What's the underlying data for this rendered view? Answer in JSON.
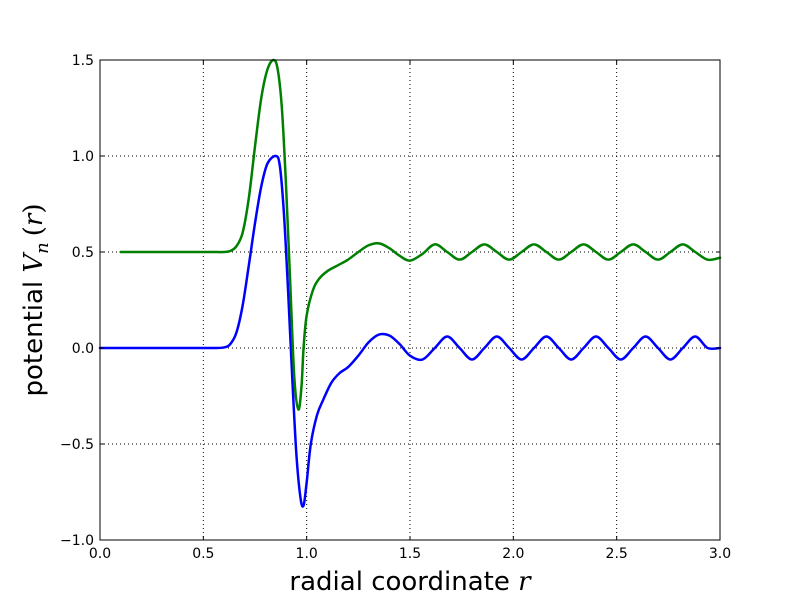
{
  "chart_data": {
    "type": "line",
    "title": "",
    "xlabel": {
      "text": "radial coordinate",
      "var": "r"
    },
    "ylabel": {
      "text": "potential",
      "var": "V",
      "sub": "n",
      "open": "(",
      "arg": "r",
      "close": ")"
    },
    "xlim": [
      0,
      3
    ],
    "ylim": [
      -1,
      1.5
    ],
    "xticks": [
      "0.0",
      "0.5",
      "1.0",
      "1.5",
      "2.0",
      "2.5",
      "3.0"
    ],
    "yticks": [
      "−1.0",
      "−0.5",
      "0.0",
      "0.5",
      "1.0",
      "1.5"
    ],
    "grid": true,
    "legend": "none",
    "series": [
      {
        "color": "#0000ff",
        "x": [
          0.0,
          0.1,
          0.2,
          0.3,
          0.4,
          0.5,
          0.55,
          0.6,
          0.63,
          0.66,
          0.69,
          0.72,
          0.75,
          0.78,
          0.81,
          0.85,
          0.87,
          0.89,
          0.91,
          0.93,
          0.95,
          0.97,
          0.985,
          1.0,
          1.02,
          1.05,
          1.08,
          1.12,
          1.16,
          1.2,
          1.25,
          1.3,
          1.35,
          1.4,
          1.45,
          1.5,
          1.56,
          1.62,
          1.68,
          1.74,
          1.8,
          1.86,
          1.92,
          1.98,
          2.04,
          2.1,
          2.16,
          2.22,
          2.28,
          2.34,
          2.4,
          2.46,
          2.52,
          2.58,
          2.64,
          2.7,
          2.76,
          2.82,
          2.88,
          2.94,
          3.0
        ],
        "y": [
          0.0,
          0.0,
          0.0,
          0.0,
          0.0,
          0.0,
          0.0,
          0.003,
          0.02,
          0.08,
          0.22,
          0.43,
          0.65,
          0.84,
          0.96,
          1.0,
          0.95,
          0.7,
          0.3,
          -0.15,
          -0.55,
          -0.78,
          -0.82,
          -0.7,
          -0.5,
          -0.35,
          -0.27,
          -0.18,
          -0.13,
          -0.1,
          -0.04,
          0.03,
          0.07,
          0.065,
          0.02,
          -0.04,
          -0.06,
          0.0,
          0.06,
          0.0,
          -0.06,
          0.0,
          0.06,
          0.0,
          -0.06,
          0.0,
          0.06,
          0.0,
          -0.06,
          0.0,
          0.06,
          0.0,
          -0.06,
          0.0,
          0.06,
          0.0,
          -0.06,
          0.0,
          0.06,
          0.0,
          0.0
        ]
      },
      {
        "color": "#008000",
        "x": [
          0.1,
          0.2,
          0.3,
          0.4,
          0.5,
          0.55,
          0.6,
          0.63,
          0.66,
          0.69,
          0.72,
          0.75,
          0.78,
          0.81,
          0.84,
          0.86,
          0.88,
          0.9,
          0.92,
          0.94,
          0.96,
          0.975,
          0.985,
          1.0,
          1.03,
          1.06,
          1.1,
          1.15,
          1.2,
          1.25,
          1.3,
          1.35,
          1.4,
          1.45,
          1.5,
          1.56,
          1.62,
          1.68,
          1.74,
          1.8,
          1.86,
          1.92,
          1.98,
          2.04,
          2.1,
          2.16,
          2.22,
          2.28,
          2.34,
          2.4,
          2.46,
          2.52,
          2.58,
          2.64,
          2.7,
          2.76,
          2.82,
          2.88,
          2.94,
          3.0
        ],
        "y": [
          0.5,
          0.5,
          0.5,
          0.5,
          0.5,
          0.5,
          0.5,
          0.505,
          0.53,
          0.6,
          0.78,
          1.05,
          1.3,
          1.45,
          1.5,
          1.45,
          1.25,
          0.85,
          0.35,
          -0.15,
          -0.32,
          -0.2,
          0.0,
          0.17,
          0.3,
          0.36,
          0.4,
          0.43,
          0.46,
          0.5,
          0.535,
          0.545,
          0.52,
          0.48,
          0.455,
          0.49,
          0.54,
          0.5,
          0.46,
          0.5,
          0.54,
          0.5,
          0.46,
          0.5,
          0.54,
          0.5,
          0.46,
          0.5,
          0.54,
          0.5,
          0.46,
          0.5,
          0.54,
          0.5,
          0.46,
          0.5,
          0.54,
          0.5,
          0.46,
          0.47
        ]
      }
    ]
  }
}
